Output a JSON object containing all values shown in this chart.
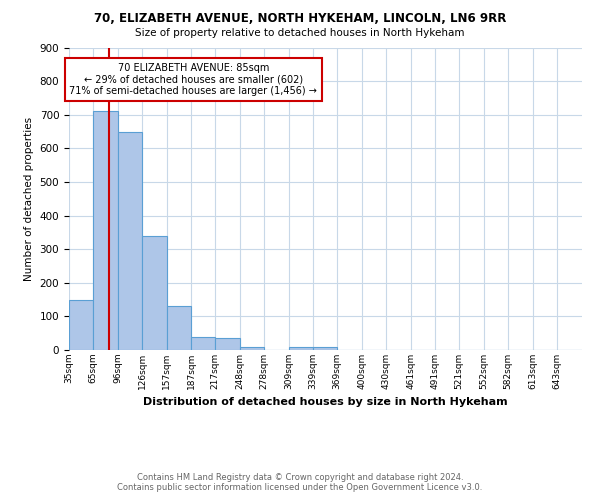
{
  "title1": "70, ELIZABETH AVENUE, NORTH HYKEHAM, LINCOLN, LN6 9RR",
  "title2": "Size of property relative to detached houses in North Hykeham",
  "xlabel": "Distribution of detached houses by size in North Hykeham",
  "ylabel": "Number of detached properties",
  "footer1": "Contains HM Land Registry data © Crown copyright and database right 2024.",
  "footer2": "Contains public sector information licensed under the Open Government Licence v3.0.",
  "bin_labels": [
    "35sqm",
    "65sqm",
    "96sqm",
    "126sqm",
    "157sqm",
    "187sqm",
    "217sqm",
    "248sqm",
    "278sqm",
    "309sqm",
    "339sqm",
    "369sqm",
    "400sqm",
    "430sqm",
    "461sqm",
    "491sqm",
    "521sqm",
    "552sqm",
    "582sqm",
    "613sqm",
    "643sqm"
  ],
  "bar_heights": [
    150,
    710,
    650,
    340,
    130,
    40,
    35,
    10,
    0,
    8,
    10,
    0,
    0,
    0,
    0,
    0,
    0,
    0,
    0,
    0,
    0
  ],
  "bar_color": "#aec6e8",
  "bar_edge_color": "#5a9fd4",
  "vline_x": 85,
  "vline_color": "#cc0000",
  "annotation_line1": "70 ELIZABETH AVENUE: 85sqm",
  "annotation_line2": "← 29% of detached houses are smaller (602)",
  "annotation_line3": "71% of semi-detached houses are larger (1,456) →",
  "annotation_box_color": "#cc0000",
  "ylim": [
    0,
    900
  ],
  "yticks": [
    0,
    100,
    200,
    300,
    400,
    500,
    600,
    700,
    800,
    900
  ],
  "grid_color": "#c8d8e8",
  "bin_edges": [
    35,
    65,
    96,
    126,
    157,
    187,
    217,
    248,
    278,
    309,
    339,
    369,
    400,
    430,
    461,
    491,
    521,
    552,
    582,
    613,
    643,
    674
  ]
}
